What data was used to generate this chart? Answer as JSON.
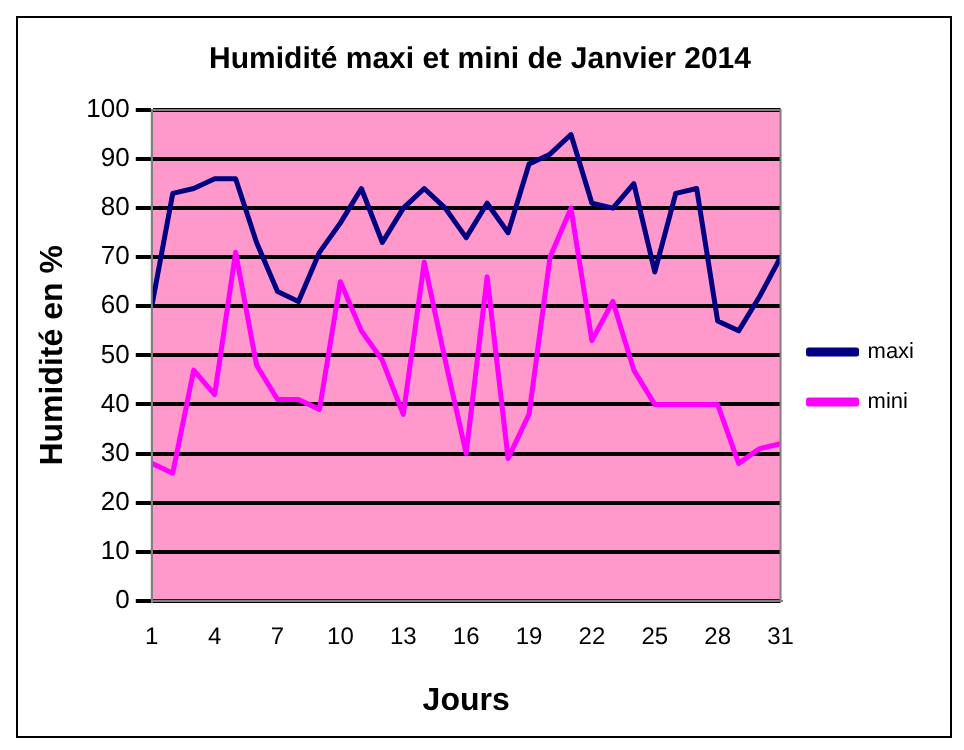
{
  "chart_data": {
    "type": "line",
    "title": "Humidité maxi et mini de Janvier 2014",
    "xlabel": "Jours",
    "ylabel": "Humidité en %",
    "x": [
      1,
      2,
      3,
      4,
      5,
      6,
      7,
      8,
      9,
      10,
      11,
      12,
      13,
      14,
      15,
      16,
      17,
      18,
      19,
      20,
      21,
      22,
      23,
      24,
      25,
      26,
      27,
      28,
      29,
      30,
      31
    ],
    "xlim": [
      1,
      31
    ],
    "xticks": [
      1,
      4,
      7,
      10,
      13,
      16,
      19,
      22,
      25,
      28,
      31
    ],
    "ylim": [
      0,
      100
    ],
    "yticks": [
      0,
      10,
      20,
      30,
      40,
      50,
      60,
      70,
      80,
      90,
      100
    ],
    "grid": "y",
    "legend": "right",
    "marker": "none",
    "line_style": "solid",
    "series": [
      {
        "name": "maxi",
        "color": "#000080",
        "values": [
          60,
          83,
          84,
          86,
          86,
          73,
          63,
          61,
          71,
          77,
          84,
          73,
          80,
          84,
          80,
          74,
          81,
          75,
          89,
          91,
          95,
          81,
          80,
          85,
          67,
          83,
          84,
          57,
          55,
          62,
          70
        ]
      },
      {
        "name": "mini",
        "color": "#ff00ff",
        "values": [
          28,
          26,
          47,
          42,
          71,
          48,
          41,
          41,
          39,
          65,
          55,
          49,
          38,
          69,
          49,
          30,
          66,
          29,
          38,
          70,
          80,
          53,
          61,
          47,
          40,
          40,
          40,
          40,
          28,
          31,
          32
        ]
      }
    ]
  }
}
